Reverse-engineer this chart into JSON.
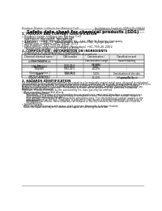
{
  "bg_color": "#ffffff",
  "header_line1": "Product Name: Lithium Ion Battery Cell",
  "header_line2": "Substance Control: SBP-UDI-03010",
  "header_line3": "Established / Revision: Dec 1 2009",
  "title": "Safety data sheet for chemical products (SDS)",
  "section1_title": "1. PRODUCT AND COMPANY IDENTIFICATION",
  "section1_lines": [
    "• Product name: Lithium Ion Battery Cell",
    "• Product code: Cylindrical-type cell",
    "   INR18650, INR18650, INR18650A",
    "• Company name:  Energy Division Co., Ltd., Mobile Energy Company",
    "• Address:       2017-1  Kamitanabe, Sumoto-City, Hyogo, Japan",
    "• Telephone number: +81-799-26-4111",
    "• Fax number: +81-799-26-4129",
    "• Emergency telephone number (Weekdays) +81-799-26-2062",
    "   (Night and holiday) +81-799-26-4129"
  ],
  "section2_title": "2. COMPOSITION / INFORMATION ON INGREDIENTS",
  "section2_subtitle": "• Substance or preparation: Preparation",
  "section2_subsub": "• Information about the chemical nature of product",
  "table_col1_header": "Chemical chemical name /\nSeveral name",
  "table_col2_header": "CAS number",
  "table_col3_header": "Concentration /\nConcentration range\n(30-60%)",
  "table_col4_header": "Classification and\nhazard labeling",
  "table_rows": [
    [
      "Lithium cobalt oxide\n(LiMn-Co)/[Co]",
      "-",
      "",
      ""
    ],
    [
      "Iron",
      "7439-89-6",
      "35-20%",
      "-"
    ],
    [
      "Aluminum",
      "7429-90-5",
      "2.6%",
      "-"
    ],
    [
      "Graphite\n(Data in graphite-1\n(ATM-as graphite))",
      "7782-42-5\n7782-44-0",
      "10-25%",
      "-"
    ],
    [
      "Copper",
      "7440-50-8",
      "5-10%",
      "Sensitization of the skin\ngroup No.2"
    ],
    [
      "Organic electrolyte",
      "-",
      "10-20%",
      "Inflammable liquid"
    ]
  ],
  "section3_title": "3. HAZARDS IDENTIFICATION",
  "section3_lines": [
    "For this battery cell, chemical materials are stored in a hermetically-sealed metal case, designed to withstand",
    "temperatures and physical/chemical environment during normal use. As a result, during normal use, there is no",
    "physical change of condition by evaporation and no chance of leakage of hazardous materials leakage.",
    "However, if subjected to a fire, added mechanical shocks, decomposed, ambient electrolyte may also use.",
    "By gas release control (is operate). The battery cell case will be produced of the particles, hazardous",
    "materials may be released.",
    "Moreover, if heated strongly by the surrounding fire, toxic gas may be emitted."
  ],
  "section3_bullet1": "• Most important hazard and effects:",
  "section3_human": "Human health effects:",
  "section3_sub_lines": [
    "    Inhalation: The release of the electrolyte has an anesthesia action and stimulates a respiratory tract.",
    "    Skin contact: The release of the electrolyte stimulates a skin. The electrolyte skin contact causes a",
    "    sore and stimulation on the skin.",
    "    Eye contact: The release of the electrolyte stimulates eyes. The electrolyte eye contact causes a sore",
    "    and stimulation on the eye. Especially, a substance that causes a strong inflammation of the eyes is",
    "    contained.",
    "    Environmental effects: Since a battery cell remains in the environment, do not throw out it into the",
    "    environment."
  ],
  "section3_bullet2": "• Specific hazards:",
  "section3_spec_lines": [
    "If the electrolyte contacts with water, it will generate flammable hydrogen fluoride.",
    "Since the liquid electrolyte is inflammable liquid, do not bring close to fire."
  ]
}
